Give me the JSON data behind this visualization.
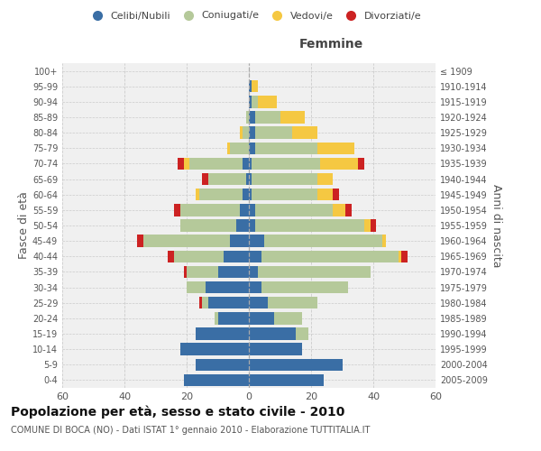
{
  "age_groups": [
    "0-4",
    "5-9",
    "10-14",
    "15-19",
    "20-24",
    "25-29",
    "30-34",
    "35-39",
    "40-44",
    "45-49",
    "50-54",
    "55-59",
    "60-64",
    "65-69",
    "70-74",
    "75-79",
    "80-84",
    "85-89",
    "90-94",
    "95-99",
    "100+"
  ],
  "birth_years": [
    "2005-2009",
    "2000-2004",
    "1995-1999",
    "1990-1994",
    "1985-1989",
    "1980-1984",
    "1975-1979",
    "1970-1974",
    "1965-1969",
    "1960-1964",
    "1955-1959",
    "1950-1954",
    "1945-1949",
    "1940-1944",
    "1935-1939",
    "1930-1934",
    "1925-1929",
    "1920-1924",
    "1915-1919",
    "1910-1914",
    "≤ 1909"
  ],
  "males": {
    "celibi": [
      21,
      17,
      22,
      17,
      10,
      13,
      14,
      10,
      8,
      6,
      4,
      3,
      2,
      1,
      2,
      0,
      0,
      0,
      0,
      0,
      0
    ],
    "coniugati": [
      0,
      0,
      0,
      0,
      1,
      2,
      6,
      10,
      16,
      28,
      18,
      19,
      14,
      12,
      17,
      6,
      2,
      1,
      0,
      0,
      0
    ],
    "vedovi": [
      0,
      0,
      0,
      0,
      0,
      0,
      0,
      0,
      0,
      0,
      0,
      0,
      1,
      0,
      2,
      1,
      1,
      0,
      0,
      0,
      0
    ],
    "divorziati": [
      0,
      0,
      0,
      0,
      0,
      1,
      0,
      1,
      2,
      2,
      0,
      2,
      0,
      2,
      2,
      0,
      0,
      0,
      0,
      0,
      0
    ]
  },
  "females": {
    "nubili": [
      24,
      30,
      17,
      15,
      8,
      6,
      4,
      3,
      4,
      5,
      2,
      2,
      1,
      1,
      1,
      2,
      2,
      2,
      1,
      1,
      0
    ],
    "coniugate": [
      0,
      0,
      0,
      4,
      9,
      16,
      28,
      36,
      44,
      38,
      35,
      25,
      21,
      21,
      22,
      20,
      12,
      8,
      2,
      0,
      0
    ],
    "vedove": [
      0,
      0,
      0,
      0,
      0,
      0,
      0,
      0,
      1,
      1,
      2,
      4,
      5,
      5,
      12,
      12,
      8,
      8,
      6,
      2,
      0
    ],
    "divorziate": [
      0,
      0,
      0,
      0,
      0,
      0,
      0,
      0,
      2,
      0,
      2,
      2,
      2,
      0,
      2,
      0,
      0,
      0,
      0,
      0,
      0
    ]
  },
  "colors": {
    "celibi": "#3a6ea5",
    "coniugati": "#b5c99a",
    "vedovi": "#f5c842",
    "divorziati": "#cc2222"
  },
  "xlim": 60,
  "title": "Popolazione per età, sesso e stato civile - 2010",
  "subtitle": "COMUNE DI BOCA (NO) - Dati ISTAT 1° gennaio 2010 - Elaborazione TUTTITALIA.IT",
  "ylabel_left": "Fasce di età",
  "ylabel_right": "Anni di nascita",
  "xlabel_right": "Femmine",
  "bg_color": "#f0f0f0",
  "grid_color": "#cccccc"
}
